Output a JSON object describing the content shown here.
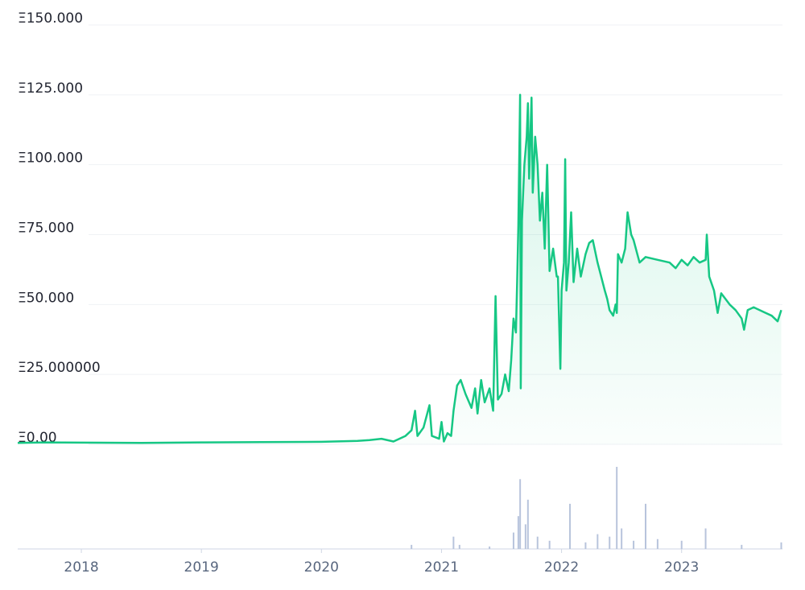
{
  "chart_data": {
    "type": "line",
    "xlim": [
      2017.47,
      2023.84
    ],
    "xticks": [
      2018,
      2019,
      2020,
      2021,
      2022,
      2023
    ],
    "ylim": [
      0,
      150
    ],
    "yticks": [
      {
        "value": 150,
        "label": "Ξ150.000"
      },
      {
        "value": 125,
        "label": "Ξ125.000"
      },
      {
        "value": 100,
        "label": "Ξ100.000"
      },
      {
        "value": 75,
        "label": "Ξ75.000"
      },
      {
        "value": 50,
        "label": "Ξ50.000"
      },
      {
        "value": 25,
        "label": "Ξ25.000000"
      },
      {
        "value": 0,
        "label": "Ξ0.00"
      }
    ],
    "grid": true,
    "series": [
      {
        "color": "#16c784",
        "x": [
          2017.47,
          2017.7,
          2018,
          2018.5,
          2019,
          2019.5,
          2020,
          2020.3,
          2020.4,
          2020.5,
          2020.6,
          2020.7,
          2020.75,
          2020.78,
          2020.8,
          2020.85,
          2020.9,
          2020.92,
          2020.98,
          2021.0,
          2021.02,
          2021.05,
          2021.08,
          2021.1,
          2021.13,
          2021.16,
          2021.2,
          2021.25,
          2021.28,
          2021.3,
          2021.33,
          2021.36,
          2021.4,
          2021.43,
          2021.45,
          2021.47,
          2021.5,
          2021.53,
          2021.56,
          2021.58,
          2021.6,
          2021.62,
          2021.63,
          2021.64,
          2021.655,
          2021.66,
          2021.67,
          2021.69,
          2021.71,
          2021.72,
          2021.73,
          2021.75,
          2021.76,
          2021.78,
          2021.8,
          2021.82,
          2021.84,
          2021.86,
          2021.88,
          2021.9,
          2021.93,
          2021.96,
          2021.97,
          2021.99,
          2022.0,
          2022.02,
          2022.03,
          2022.04,
          2022.06,
          2022.08,
          2022.1,
          2022.13,
          2022.16,
          2022.2,
          2022.23,
          2022.26,
          2022.3,
          2022.33,
          2022.36,
          2022.38,
          2022.4,
          2022.43,
          2022.45,
          2022.46,
          2022.47,
          2022.5,
          2022.53,
          2022.55,
          2022.58,
          2022.6,
          2022.65,
          2022.7,
          2022.8,
          2022.9,
          2022.95,
          2023.0,
          2023.05,
          2023.1,
          2023.15,
          2023.2,
          2023.21,
          2023.23,
          2023.27,
          2023.3,
          2023.33,
          2023.4,
          2023.45,
          2023.5,
          2023.52,
          2023.55,
          2023.6,
          2023.7,
          2023.75,
          2023.8,
          2023.83
        ],
        "values": [
          0.5,
          0.7,
          0.6,
          0.5,
          0.7,
          0.8,
          0.9,
          1.2,
          1.5,
          2,
          1,
          3,
          5,
          12,
          3,
          6,
          14,
          3,
          2,
          8,
          1,
          4,
          3,
          12,
          21,
          23,
          18,
          13,
          20,
          11,
          23,
          15,
          20,
          12,
          53,
          16,
          18,
          25,
          19,
          30,
          45,
          40,
          58,
          78,
          125,
          20,
          80,
          100,
          110,
          122,
          95,
          124,
          90,
          110,
          100,
          80,
          90,
          70,
          100,
          62,
          70,
          60,
          60,
          27,
          55,
          65,
          102,
          55,
          65,
          83,
          58,
          70,
          60,
          68,
          72,
          73,
          65,
          60,
          55,
          52,
          48,
          46,
          50,
          47,
          68,
          65,
          70,
          83,
          75,
          73,
          65,
          67,
          66,
          65,
          63,
          66,
          64,
          67,
          65,
          66,
          75,
          60,
          55,
          47,
          54,
          50,
          48,
          45,
          41,
          48,
          49,
          47,
          46,
          44,
          48
        ]
      }
    ],
    "volume": {
      "color": "#b8c4dc",
      "x": [
        2020.75,
        2021.1,
        2021.15,
        2021.4,
        2021.6,
        2021.64,
        2021.655,
        2021.7,
        2021.72,
        2021.8,
        2021.9,
        2022.07,
        2022.2,
        2022.3,
        2022.4,
        2022.46,
        2022.5,
        2022.6,
        2022.7,
        2022.8,
        2023.0,
        2023.2,
        2023.5,
        2023.83
      ],
      "values": [
        5,
        15,
        5,
        3,
        20,
        40,
        85,
        30,
        60,
        15,
        10,
        55,
        8,
        18,
        15,
        100,
        25,
        10,
        55,
        12,
        10,
        25,
        5,
        8
      ],
      "ylim": [
        0,
        100
      ]
    }
  }
}
